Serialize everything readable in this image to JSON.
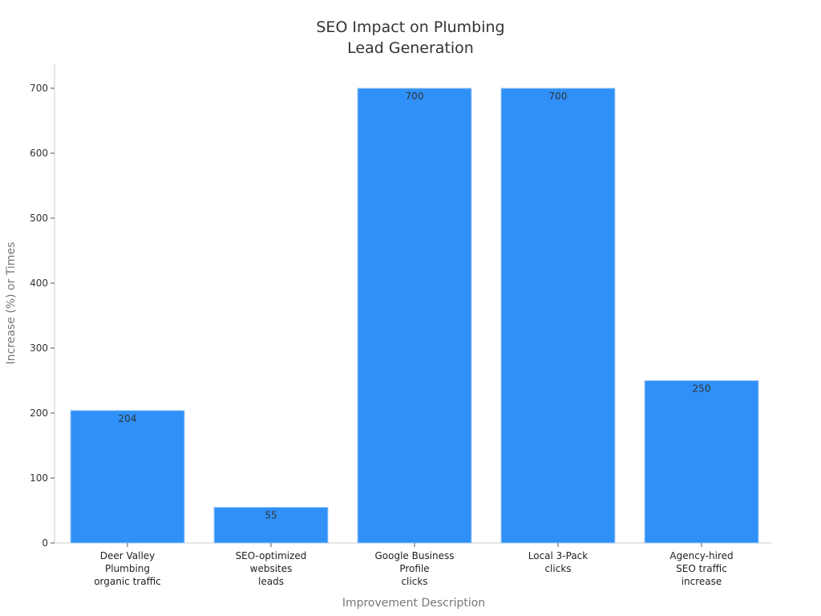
{
  "chart_data": {
    "type": "bar",
    "title": [
      "SEO Impact on Plumbing",
      "Lead Generation"
    ],
    "xlabel": "Improvement Description",
    "ylabel": "Increase (%) or Times",
    "categories": [
      [
        "Deer Valley",
        "Plumbing",
        "organic traffic"
      ],
      [
        "SEO-optimized",
        "websites",
        "leads"
      ],
      [
        "Google Business",
        "Profile",
        "clicks"
      ],
      [
        "Local 3-Pack",
        "clicks"
      ],
      [
        "Agency-hired",
        "SEO traffic",
        "increase"
      ]
    ],
    "values": [
      204,
      55,
      700,
      700,
      250
    ],
    "data_labels": [
      "204",
      "55",
      "700",
      "700",
      "250"
    ],
    "ylim": [
      0,
      700
    ],
    "yticks": [
      0,
      100,
      200,
      300,
      400,
      500,
      600,
      700
    ],
    "grid": false,
    "legend": "none",
    "bar_color": "#2f91f8",
    "bar_edge_color": "#a9cdf5"
  }
}
